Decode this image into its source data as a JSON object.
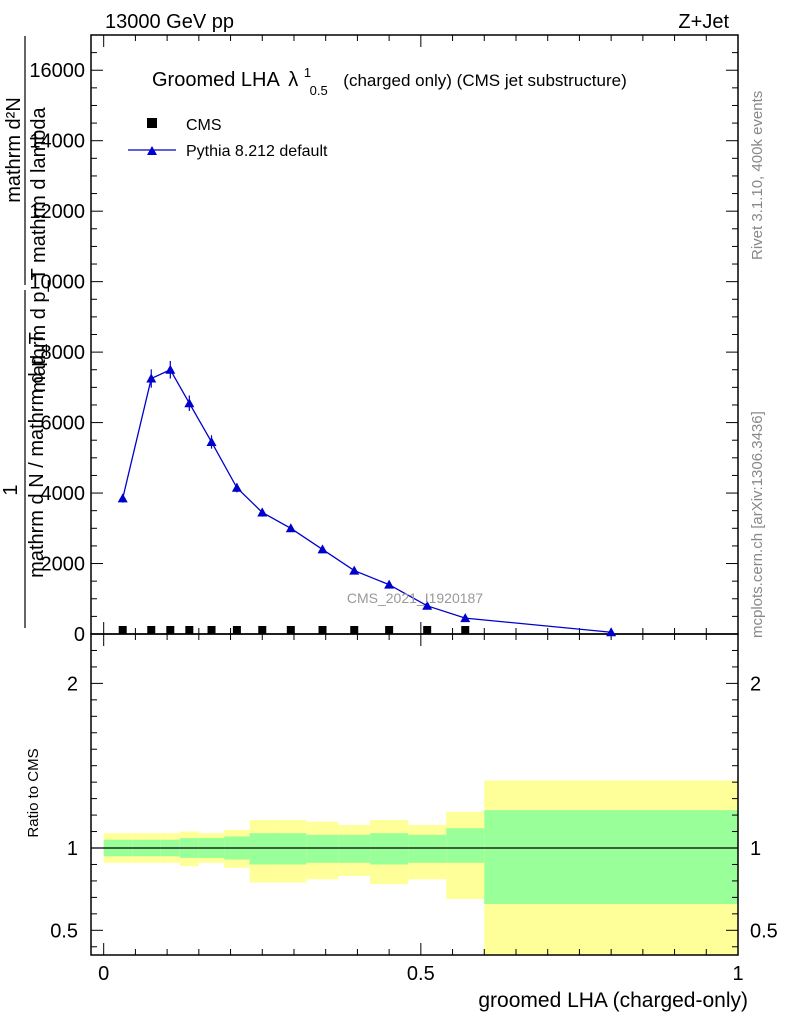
{
  "header": {
    "energy_label": "13000 GeV pp",
    "process_label": "Z+Jet",
    "plot_title": "Groomed LHA",
    "lambda_symbol": "λ",
    "lambda_sup": "1",
    "lambda_sub": "0.5",
    "plot_title_suffix": "(charged only) (CMS jet substructure)",
    "analysis_watermark": "CMS_2021_I1920187"
  },
  "side_labels": {
    "rivet": "Rivet 3.1.10,  400k events",
    "mcplots": "mcplots.cern.ch [arXiv:1306.3436]"
  },
  "y_axis_top": {
    "label_numerator": "mathrm d²N",
    "label_denominator": "mathrm d p_T mathrm d lambda",
    "label_one": "1",
    "label_factor": "mathrm d N / mathrm d p_T"
  },
  "legend": {
    "cms_label": "CMS",
    "pythia_label": "Pythia 8.212 default"
  },
  "colors": {
    "pythia": "#0000cc",
    "band_inner": "#99ff99",
    "band_outer": "#ffff99",
    "data": "#000000"
  },
  "chart_data": [
    {
      "type": "line",
      "panel": "main",
      "xlim": [
        -0.02,
        1.0
      ],
      "ylim": [
        0,
        17000
      ],
      "yticks": [
        2000,
        4000,
        6000,
        8000,
        10000,
        12000,
        14000,
        16000
      ],
      "ytick_labels": [
        "2000",
        "4000",
        "6000",
        "8000",
        "10000",
        "12000",
        "14000",
        "16000"
      ],
      "series": [
        {
          "name": "CMS",
          "marker": "square",
          "x": [
            0.03,
            0.075,
            0.105,
            0.135,
            0.17,
            0.21,
            0.25,
            0.295,
            0.345,
            0.395,
            0.45,
            0.51,
            0.57
          ],
          "y": [
            30,
            30,
            30,
            30,
            30,
            30,
            30,
            30,
            30,
            30,
            30,
            30,
            30
          ]
        },
        {
          "name": "Pythia 8.212 default",
          "marker": "triangle",
          "x": [
            0.03,
            0.075,
            0.105,
            0.135,
            0.17,
            0.21,
            0.25,
            0.295,
            0.345,
            0.395,
            0.45,
            0.51,
            0.57,
            0.8
          ],
          "y": [
            3850,
            7250,
            7500,
            6550,
            5450,
            4150,
            3450,
            3000,
            2400,
            1800,
            1400,
            800,
            450,
            50
          ],
          "yerr": [
            120,
            260,
            250,
            220,
            190,
            130,
            120,
            100,
            80,
            60,
            50,
            40,
            30,
            10
          ]
        }
      ]
    },
    {
      "type": "area",
      "panel": "ratio",
      "ylabel": "Ratio to CMS",
      "xlabel": "groomed LHA (charged-only)",
      "xlim": [
        -0.02,
        1.0
      ],
      "ylim": [
        0.35,
        2.3
      ],
      "yticks": [
        0.5,
        1,
        2
      ],
      "ytick_labels": [
        "0.5",
        "1",
        "2"
      ],
      "xticks": [
        0,
        0.5,
        1
      ],
      "xtick_labels": [
        "0",
        "0.5",
        "1"
      ],
      "bins": [
        0,
        0.045,
        0.09,
        0.12,
        0.15,
        0.19,
        0.23,
        0.27,
        0.32,
        0.37,
        0.42,
        0.48,
        0.54,
        0.6,
        1.0
      ],
      "inner_low": [
        0.95,
        0.95,
        0.95,
        0.94,
        0.94,
        0.93,
        0.9,
        0.9,
        0.91,
        0.91,
        0.9,
        0.91,
        0.91,
        0.66
      ],
      "inner_high": [
        1.05,
        1.05,
        1.05,
        1.06,
        1.06,
        1.07,
        1.09,
        1.09,
        1.08,
        1.08,
        1.09,
        1.08,
        1.12,
        1.23
      ],
      "outer_low": [
        0.91,
        0.91,
        0.91,
        0.89,
        0.91,
        0.88,
        0.79,
        0.79,
        0.81,
        0.83,
        0.78,
        0.81,
        0.69,
        0.34
      ],
      "outer_high": [
        1.09,
        1.09,
        1.09,
        1.1,
        1.09,
        1.11,
        1.17,
        1.17,
        1.16,
        1.14,
        1.17,
        1.14,
        1.22,
        1.41
      ],
      "reference_line": 1
    }
  ]
}
